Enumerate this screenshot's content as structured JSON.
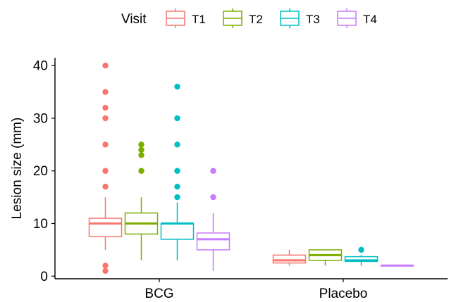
{
  "chart_data": {
    "type": "boxplot",
    "title": "",
    "xlabel": "",
    "ylabel": "Lesion size (mm)",
    "ylim": [
      -0.5,
      41.5
    ],
    "yticks": [
      0,
      10,
      20,
      30,
      40
    ],
    "grid": false,
    "legend_position": "top",
    "legend_title": "Visit",
    "categories": [
      "BCG",
      "Placebo"
    ],
    "series": [
      {
        "name": "T1",
        "color": "#F8766D",
        "boxes": [
          {
            "category": "BCG",
            "whisker_low": 5,
            "q1": 7.5,
            "median": 10,
            "q3": 11,
            "whisker_high": 15,
            "outliers": [
              1,
              2,
              17,
              20,
              25,
              30,
              32,
              35,
              40
            ]
          },
          {
            "category": "Placebo",
            "whisker_low": 2,
            "q1": 2.5,
            "median": 3,
            "q3": 4,
            "whisker_high": 5,
            "outliers": []
          }
        ]
      },
      {
        "name": "T2",
        "color": "#7CAE00",
        "boxes": [
          {
            "category": "BCG",
            "whisker_low": 3,
            "q1": 8,
            "median": 10,
            "q3": 12,
            "whisker_high": 15,
            "outliers": [
              20,
              23,
              24,
              25
            ]
          },
          {
            "category": "Placebo",
            "whisker_low": 2,
            "q1": 3,
            "median": 4,
            "q3": 5,
            "whisker_high": 5,
            "outliers": []
          }
        ]
      },
      {
        "name": "T3",
        "color": "#00BFC4",
        "boxes": [
          {
            "category": "BCG",
            "whisker_low": 3,
            "q1": 7,
            "median": 10,
            "q3": 10,
            "whisker_high": 14,
            "outliers": [
              15,
              17,
              20,
              25,
              30,
              36
            ]
          },
          {
            "category": "Placebo",
            "whisker_low": 2,
            "q1": 2.8,
            "median": 3,
            "q3": 3.7,
            "whisker_high": 4,
            "outliers": [
              5
            ]
          }
        ]
      },
      {
        "name": "T4",
        "color": "#C77CFF",
        "boxes": [
          {
            "category": "BCG",
            "whisker_low": 1,
            "q1": 5,
            "median": 7,
            "q3": 8.2,
            "whisker_high": 12,
            "outliers": [
              15,
              20
            ]
          },
          {
            "category": "Placebo",
            "whisker_low": 2,
            "q1": 2,
            "median": 2,
            "q3": 2,
            "whisker_high": 2,
            "outliers": []
          }
        ]
      }
    ]
  }
}
